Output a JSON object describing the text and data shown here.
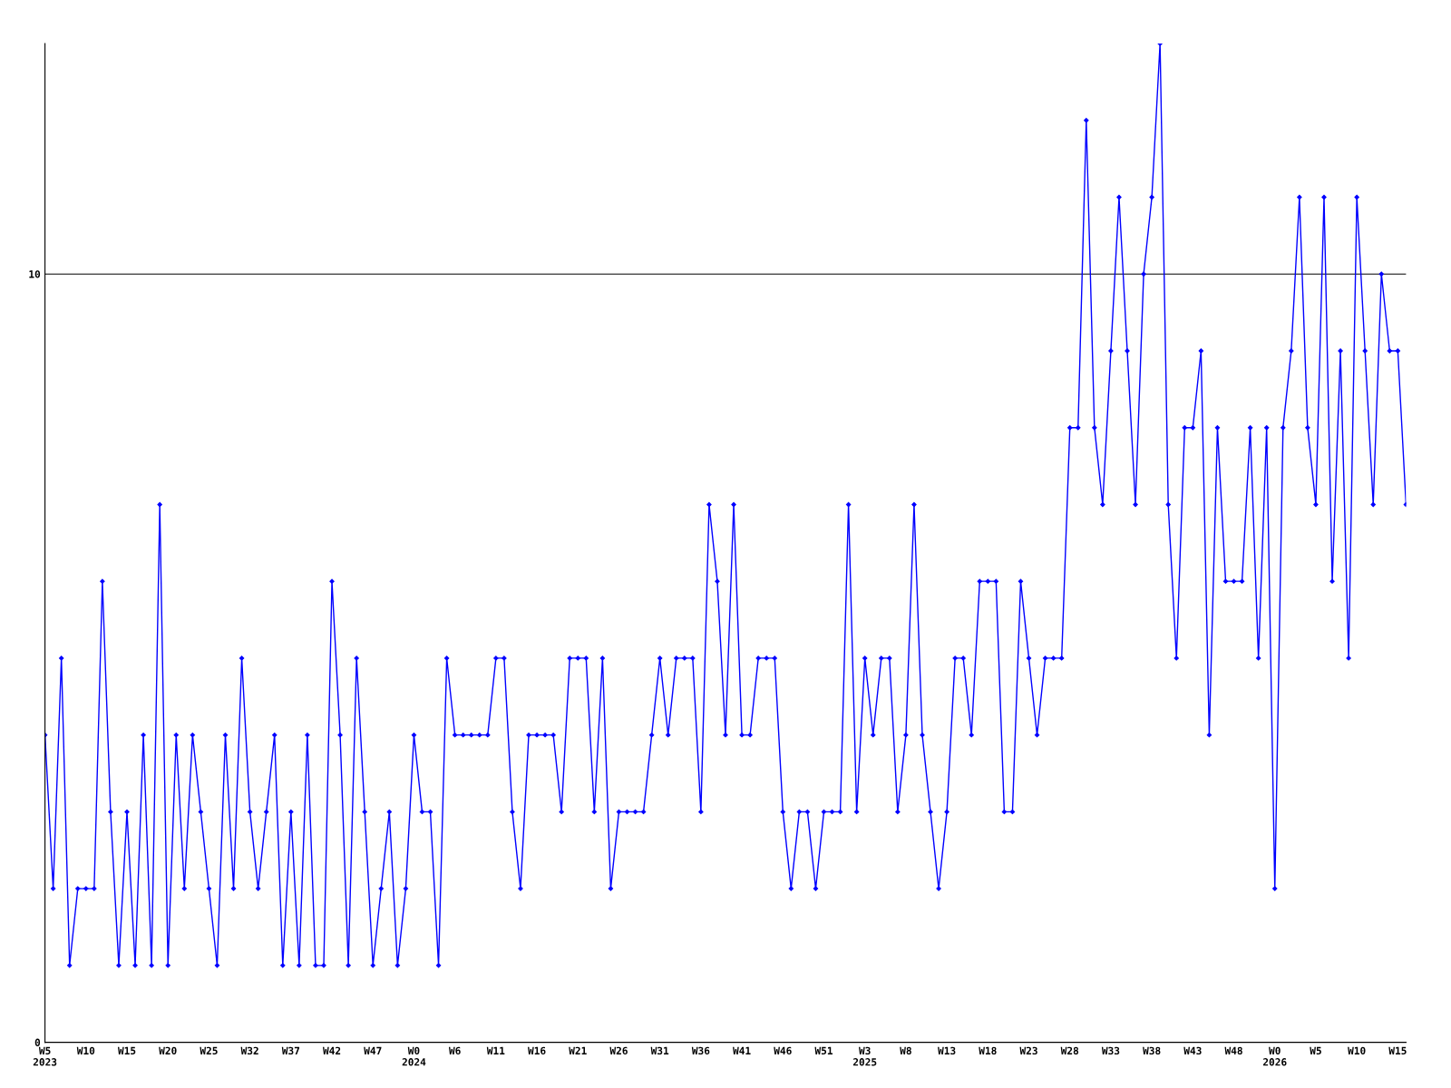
{
  "chart_data": {
    "type": "line",
    "categories": [
      "W5\n2023",
      null,
      null,
      null,
      null,
      "W10",
      null,
      null,
      null,
      null,
      "W15",
      null,
      null,
      null,
      null,
      "W20",
      null,
      null,
      null,
      null,
      "W25",
      null,
      null,
      null,
      null,
      "W32",
      null,
      null,
      null,
      null,
      "W37",
      null,
      null,
      null,
      null,
      "W42",
      null,
      null,
      null,
      null,
      "W47",
      null,
      null,
      null,
      null,
      "W0\n2024",
      null,
      null,
      null,
      null,
      "W6",
      null,
      null,
      null,
      null,
      "W11",
      null,
      null,
      null,
      null,
      "W16",
      null,
      null,
      null,
      null,
      "W21",
      null,
      null,
      null,
      null,
      "W26",
      null,
      null,
      null,
      null,
      "W31",
      null,
      null,
      null,
      null,
      "W36",
      null,
      null,
      null,
      null,
      "W41",
      null,
      null,
      null,
      null,
      "W46",
      null,
      null,
      null,
      null,
      "W51",
      null,
      null,
      null,
      null,
      "W3\n2025",
      null,
      null,
      null,
      null,
      "W8",
      null,
      null,
      null,
      null,
      "W13",
      null,
      null,
      null,
      null,
      "W18",
      null,
      null,
      null,
      null,
      "W23",
      null,
      null,
      null,
      null,
      "W28",
      null,
      null,
      null,
      null,
      "W33",
      null,
      null,
      null,
      null,
      "W38",
      null,
      null,
      null,
      null,
      "W43",
      null,
      null,
      null,
      null,
      "W48",
      null,
      null,
      null,
      null,
      "W0\n2026",
      null,
      null,
      null,
      null,
      "W5",
      null,
      null,
      null,
      null,
      "W10",
      null,
      null,
      null,
      null,
      "W15",
      null
    ],
    "series": [
      {
        "color": "#0000ff",
        "values": [
          4,
          2,
          5,
          1,
          2,
          2,
          2,
          6,
          3,
          1,
          3,
          1,
          4,
          1,
          7,
          1,
          4,
          2,
          4,
          3,
          2,
          1,
          4,
          2,
          5,
          3,
          2,
          3,
          4,
          1,
          3,
          1,
          4,
          1,
          1,
          6,
          4,
          1,
          5,
          3,
          1,
          2,
          3,
          1,
          2,
          4,
          3,
          3,
          1,
          5,
          4,
          4,
          4,
          4,
          4,
          5,
          5,
          3,
          2,
          4,
          4,
          4,
          4,
          3,
          5,
          5,
          5,
          3,
          5,
          2,
          3,
          3,
          3,
          3,
          4,
          5,
          4,
          5,
          5,
          5,
          3,
          7,
          6,
          4,
          7,
          4,
          4,
          5,
          5,
          5,
          3,
          2,
          3,
          3,
          2,
          3,
          3,
          3,
          7,
          3,
          5,
          4,
          5,
          5,
          3,
          4,
          7,
          4,
          3,
          2,
          3,
          5,
          5,
          4,
          6,
          6,
          6,
          3,
          3,
          6,
          5,
          4,
          5,
          5,
          5,
          8,
          8,
          12,
          8,
          7,
          9,
          11,
          9,
          7,
          10,
          11,
          13,
          7,
          5,
          8,
          8,
          9,
          4,
          8,
          6,
          6,
          6,
          8,
          5,
          8,
          2,
          8,
          9,
          11,
          8,
          7,
          11,
          6,
          9,
          5,
          11,
          9,
          7,
          10,
          9,
          9,
          7
        ]
      }
    ],
    "ylim": [
      0,
      13
    ],
    "yticks": [
      0,
      10
    ],
    "grid": "y",
    "marker": "diamond",
    "line_style": "solid"
  }
}
